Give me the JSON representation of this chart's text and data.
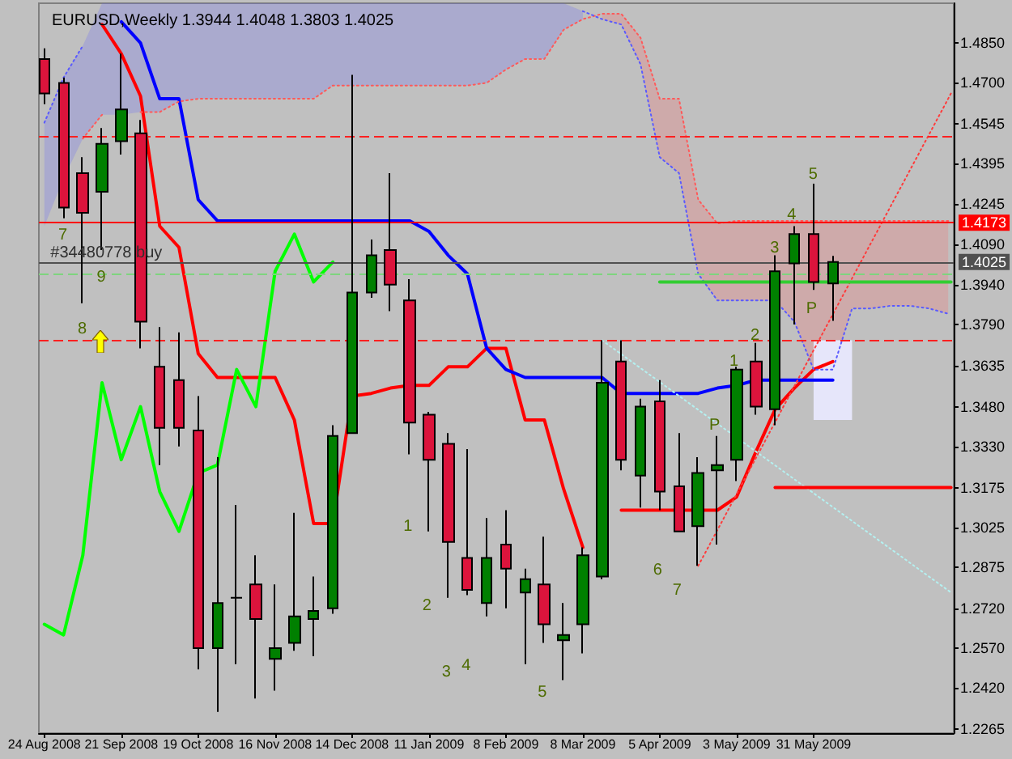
{
  "chart_data": {
    "type": "candlestick",
    "title": "EURUSD,Weekly 1.3944 1.4048 1.3803 1.4025",
    "x": [
      "2008-08-24",
      "2008-08-31",
      "2008-09-07",
      "2008-09-14",
      "2008-09-21",
      "2008-09-28",
      "2008-10-05",
      "2008-10-12",
      "2008-10-19",
      "2008-10-26",
      "2008-11-02",
      "2008-11-09",
      "2008-11-16",
      "2008-11-23",
      "2008-11-30",
      "2008-12-07",
      "2008-12-14",
      "2008-12-21",
      "2008-12-28",
      "2009-01-04",
      "2009-01-11",
      "2009-01-18",
      "2009-01-25",
      "2009-02-01",
      "2009-02-08",
      "2009-02-15",
      "2009-02-22",
      "2009-03-01",
      "2009-03-08",
      "2009-03-15",
      "2009-03-22",
      "2009-03-29",
      "2009-04-05",
      "2009-04-12",
      "2009-04-19",
      "2009-04-26",
      "2009-05-03",
      "2009-05-10",
      "2009-05-17",
      "2009-05-24",
      "2009-05-31",
      "2009-06-07"
    ],
    "ohlc": [
      [
        1.479,
        1.483,
        1.462,
        1.466
      ],
      [
        1.47,
        1.472,
        1.419,
        1.423
      ],
      [
        1.436,
        1.442,
        1.387,
        1.421
      ],
      [
        1.429,
        1.453,
        1.407,
        1.447
      ],
      [
        1.448,
        1.481,
        1.443,
        1.46
      ],
      [
        1.451,
        1.456,
        1.37,
        1.38
      ],
      [
        1.363,
        1.378,
        1.326,
        1.34
      ],
      [
        1.358,
        1.376,
        1.333,
        1.34
      ],
      [
        1.339,
        1.352,
        1.249,
        1.257
      ],
      [
        1.257,
        1.329,
        1.233,
        1.274
      ],
      [
        1.276,
        1.311,
        1.251,
        1.276
      ],
      [
        1.281,
        1.292,
        1.238,
        1.268
      ],
      [
        1.253,
        1.281,
        1.241,
        1.257
      ],
      [
        1.259,
        1.308,
        1.256,
        1.269
      ],
      [
        1.268,
        1.284,
        1.254,
        1.271
      ],
      [
        1.272,
        1.341,
        1.27,
        1.337
      ],
      [
        1.338,
        1.473,
        1.338,
        1.391
      ],
      [
        1.391,
        1.411,
        1.389,
        1.405
      ],
      [
        1.407,
        1.436,
        1.384,
        1.394
      ],
      [
        1.388,
        1.396,
        1.33,
        1.342
      ],
      [
        1.345,
        1.346,
        1.301,
        1.328
      ],
      [
        1.334,
        1.338,
        1.276,
        1.297
      ],
      [
        1.291,
        1.332,
        1.277,
        1.279
      ],
      [
        1.274,
        1.306,
        1.269,
        1.291
      ],
      [
        1.296,
        1.309,
        1.272,
        1.287
      ],
      [
        1.278,
        1.287,
        1.251,
        1.283
      ],
      [
        1.281,
        1.299,
        1.259,
        1.266
      ],
      [
        1.26,
        1.274,
        1.245,
        1.262
      ],
      [
        1.266,
        1.295,
        1.255,
        1.292
      ],
      [
        1.284,
        1.373,
        1.283,
        1.357
      ],
      [
        1.365,
        1.373,
        1.324,
        1.328
      ],
      [
        1.322,
        1.351,
        1.31,
        1.348
      ],
      [
        1.35,
        1.358,
        1.309,
        1.316
      ],
      [
        1.318,
        1.338,
        1.301,
        1.301
      ],
      [
        1.303,
        1.329,
        1.288,
        1.323
      ],
      [
        1.324,
        1.337,
        1.296,
        1.326
      ],
      [
        1.328,
        1.363,
        1.32,
        1.362
      ],
      [
        1.365,
        1.372,
        1.345,
        1.348
      ],
      [
        1.347,
        1.405,
        1.341,
        1.399
      ],
      [
        1.402,
        1.416,
        1.379,
        1.413
      ],
      [
        1.413,
        1.432,
        1.392,
        1.395
      ],
      [
        1.3944,
        1.4048,
        1.3803,
        1.4025
      ]
    ],
    "colors": [
      "#dc143c",
      "#dc143c",
      "#dc143c",
      "#008000",
      "#008000",
      "#dc143c",
      "#dc143c",
      "#dc143c",
      "#dc143c",
      "#008000",
      "#000000",
      "#dc143c",
      "#008000",
      "#008000",
      "#008000",
      "#008000",
      "#008000",
      "#008000",
      "#dc143c",
      "#dc143c",
      "#dc143c",
      "#dc143c",
      "#dc143c",
      "#008000",
      "#dc143c",
      "#008000",
      "#dc143c",
      "#008000",
      "#008000",
      "#008000",
      "#dc143c",
      "#008000",
      "#dc143c",
      "#dc143c",
      "#008000",
      "#008000",
      "#008000",
      "#dc143c",
      "#008000",
      "#008000",
      "#dc143c",
      "#008000"
    ],
    "series": [
      {
        "type": "line",
        "color": "#ff0000",
        "line_style": "solid",
        "values": [
          null,
          null,
          null,
          1.492,
          1.481,
          1.465,
          1.416,
          1.408,
          1.368,
          1.359,
          1.359,
          1.359,
          1.359,
          1.343,
          1.304,
          1.304,
          1.352,
          1.353,
          1.355,
          1.356,
          1.356,
          1.363,
          1.363,
          1.37,
          1.37,
          1.343,
          1.343,
          1.317,
          1.295,
          null,
          1.309,
          1.309,
          1.309,
          1.309,
          1.309,
          1.309,
          1.314,
          1.331,
          1.347,
          1.355,
          1.362,
          1.365
        ]
      },
      {
        "type": "line",
        "color": "#0000ff",
        "line_style": "solid",
        "values": [
          null,
          null,
          null,
          null,
          1.493,
          1.485,
          1.464,
          1.464,
          1.426,
          1.418,
          1.418,
          1.418,
          1.418,
          1.418,
          1.418,
          1.418,
          1.418,
          1.418,
          1.418,
          1.418,
          1.414,
          1.405,
          1.398,
          1.37,
          1.362,
          1.359,
          1.359,
          1.359,
          1.359,
          1.359,
          1.353,
          1.353,
          1.353,
          1.353,
          1.353,
          1.355,
          1.356,
          1.358,
          1.358,
          1.358,
          1.358,
          1.358
        ]
      },
      {
        "type": "line",
        "color": "#00ff00",
        "line_style": "solid",
        "x": [
          "2008-08-24",
          "2008-08-31",
          "2008-09-07",
          "2008-09-14",
          "2008-09-21",
          "2008-09-28",
          "2008-10-05",
          "2008-10-12",
          "2008-10-19",
          "2008-10-26",
          "2008-11-02",
          "2008-11-09",
          "2008-11-16",
          "2008-11-23",
          "2008-11-30",
          "2008-12-07"
        ],
        "values": [
          1.266,
          1.262,
          1.292,
          1.357,
          1.328,
          1.348,
          1.316,
          1.301,
          1.323,
          1.326,
          1.362,
          1.348,
          1.399,
          1.413,
          1.395,
          1.4025
        ]
      },
      {
        "type": "line",
        "color": "#ff5a5a",
        "line_style": "dotted",
        "x": [
          "2008-09-07",
          "2008-09-14",
          "2008-09-21",
          "2008-09-28",
          "2008-10-05",
          "2008-10-12",
          "2008-10-19",
          "2008-10-26",
          "2008-11-02",
          "2008-11-09",
          "2008-11-16",
          "2008-11-23",
          "2008-11-30",
          "2008-12-07",
          "2008-12-14",
          "2008-12-21",
          "2008-12-28",
          "2009-01-04",
          "2009-01-11",
          "2009-01-18",
          "2009-01-25",
          "2009-02-01",
          "2009-02-08",
          "2009-02-15",
          "2009-02-22",
          "2009-03-01",
          "2009-03-08",
          "2009-03-15",
          "2009-03-22",
          "2009-03-29",
          "2009-04-05",
          "2009-04-12",
          "2009-04-19",
          "2009-04-26",
          "2009-05-03",
          "2009-05-10",
          "2009-05-17",
          "2009-05-24",
          "2009-05-31",
          "2009-06-07",
          "2009-06-14",
          "2009-06-21",
          "2009-06-28",
          "2009-07-05",
          "2009-07-12",
          "2009-07-19"
        ],
        "values": [
          1.449,
          1.458,
          null,
          1.459,
          1.459,
          1.463,
          1.464,
          1.464,
          1.464,
          1.464,
          1.464,
          1.464,
          1.464,
          1.469,
          1.469,
          1.469,
          1.469,
          1.469,
          1.469,
          1.469,
          1.469,
          1.47,
          1.475,
          1.479,
          1.479,
          1.49,
          1.494,
          1.496,
          1.496,
          1.487,
          1.464,
          1.464,
          1.426,
          1.417,
          1.418,
          1.418,
          1.418,
          1.418,
          1.418,
          1.418,
          1.418,
          1.418,
          1.418,
          1.418,
          1.418,
          1.418
        ],
        "lower": [
          null,
          null,
          null,
          null,
          null,
          null,
          null,
          null,
          null,
          null,
          null,
          null,
          null,
          null,
          null,
          null,
          null,
          null,
          null,
          null,
          null,
          null,
          null,
          null,
          null,
          null,
          null,
          1.494,
          1.492,
          1.477,
          1.442,
          1.436,
          1.398,
          1.388,
          1.388,
          1.388,
          1.388,
          1.38,
          1.362,
          1.362,
          1.385,
          1.385,
          1.386,
          1.386,
          1.385,
          1.383
        ],
        "upper": [
          null,
          null,
          null,
          null,
          null,
          null,
          null,
          null,
          null,
          null,
          null,
          null,
          null,
          null,
          null,
          null,
          null,
          null,
          null,
          null,
          null,
          null,
          null,
          null,
          null,
          null,
          null,
          1.496,
          1.496,
          1.487,
          1.464,
          1.464,
          1.426,
          1.417,
          1.418,
          1.418,
          1.418,
          1.418,
          1.418,
          1.418,
          1.418,
          1.418,
          1.418,
          1.418,
          1.418,
          1.418
        ]
      },
      {
        "type": "line",
        "color": "#5a5aff",
        "line_style": "dotted",
        "x": [
          "2008-08-24",
          "2008-08-31",
          "2008-09-07",
          "2008-09-14",
          "2008-09-21",
          "2008-09-28",
          "2008-10-05",
          "2008-10-12",
          "2008-10-19",
          "2008-10-26",
          "2008-11-02",
          "2008-11-09",
          "2008-11-16",
          "2008-11-23",
          "2008-11-30",
          "2008-12-07",
          "2008-12-14",
          "2008-12-21",
          "2008-12-28",
          "2009-01-04",
          "2009-01-11",
          "2009-01-18",
          "2009-01-25",
          "2009-02-01",
          "2009-02-08",
          "2009-02-15",
          "2009-02-22",
          "2009-03-01",
          "2009-03-08",
          "2009-03-15",
          "2009-03-22",
          "2009-03-29",
          "2009-04-05",
          "2009-04-12",
          "2009-04-19",
          "2009-04-26",
          "2009-05-03",
          "2009-05-10",
          "2009-05-17",
          "2009-05-24",
          "2009-05-31",
          "2009-06-07",
          "2009-06-14",
          "2009-06-21",
          "2009-06-28",
          "2009-07-05",
          "2009-07-12",
          "2009-07-19"
        ],
        "values": [
          1.455,
          1.472,
          1.484,
          null,
          null,
          null,
          null,
          null,
          null,
          null,
          null,
          null,
          null,
          null,
          null,
          null,
          null,
          null,
          null,
          null,
          null,
          null,
          null,
          null,
          null,
          null,
          null,
          null,
          1.497,
          1.494,
          1.492,
          1.477,
          1.442,
          1.436,
          1.398,
          1.388,
          1.388,
          1.388,
          1.388,
          1.38,
          1.362,
          1.362,
          1.385,
          1.385,
          1.386,
          1.386,
          1.385,
          1.383
        ],
        "lower": [
          1.416,
          1.434,
          1.449,
          1.458,
          1.458,
          1.459,
          1.459,
          1.463,
          1.464,
          1.464,
          1.464,
          1.464,
          1.464,
          1.464,
          1.464,
          1.469,
          1.469,
          1.469,
          1.469,
          1.469,
          1.469,
          1.469,
          1.469,
          1.47,
          1.475,
          1.479,
          1.479,
          1.49,
          1.494,
          null,
          null,
          null,
          null,
          null,
          null,
          null,
          null,
          null,
          null,
          null,
          null,
          null,
          null,
          null,
          null,
          null,
          null,
          null
        ],
        "upper": [
          1.455,
          1.472,
          1.484,
          1.5,
          1.5,
          1.5,
          1.5,
          1.5,
          1.5,
          1.5,
          1.5,
          1.5,
          1.5,
          1.5,
          1.5,
          1.5,
          1.5,
          1.5,
          1.5,
          1.5,
          1.5,
          1.5,
          1.5,
          1.5,
          1.5,
          1.5,
          1.5,
          1.5,
          1.497,
          null,
          null,
          null,
          null,
          null,
          null,
          null,
          null,
          null,
          null,
          null,
          null,
          null,
          null,
          null,
          null,
          null,
          null,
          null
        ]
      },
      {
        "type": "line",
        "color": "#ff3c3c",
        "line_style": "dotted",
        "x": [
          "2009-04-19",
          "2009-07-20"
        ],
        "values": [
          1.288,
          1.466
        ]
      },
      {
        "type": "line",
        "color": "#b4f0f0",
        "line_style": "dotted",
        "x": [
          "2009-03-15",
          "2009-07-20"
        ],
        "values": [
          1.373,
          1.278
        ]
      },
      {
        "type": "line",
        "color": "#32cd32",
        "line_style": "solid",
        "x": [
          "2009-04-05",
          "2009-07-20"
        ],
        "values": [
          1.395,
          1.395
        ]
      },
      {
        "type": "line",
        "color": "#ff0000",
        "line_style": "solid",
        "x": [
          "2009-05-17",
          "2009-07-20"
        ],
        "values": [
          1.3175,
          1.3175
        ]
      },
      {
        "type": "bar",
        "color": "#e6e6fa",
        "x": [
          "2009-06-07"
        ],
        "base": [
          1.343
        ],
        "values": [
          0.03
        ]
      }
    ],
    "xlim": [
      "2008-08-22",
      "2009-07-21"
    ],
    "xticks": [
      {
        "value": "2008-08-24",
        "label": "24 Aug 2008"
      },
      {
        "value": "2008-09-21",
        "label": "21 Sep 2008"
      },
      {
        "value": "2008-10-19",
        "label": "19 Oct 2008"
      },
      {
        "value": "2008-11-16",
        "label": "16 Nov 2008"
      },
      {
        "value": "2008-12-14",
        "label": "14 Dec 2008"
      },
      {
        "value": "2009-01-11",
        "label": "11 Jan 2009"
      },
      {
        "value": "2009-02-08",
        "label": "8 Feb 2009"
      },
      {
        "value": "2009-03-08",
        "label": "8 Mar 2009"
      },
      {
        "value": "2009-04-05",
        "label": "5 Apr 2009"
      },
      {
        "value": "2009-05-03",
        "label": "3 May 2009"
      },
      {
        "value": "2009-05-31",
        "label": "31 May 2009"
      }
    ],
    "ylim": [
      1.225,
      1.5
    ],
    "yticks": [
      {
        "value": 1.485,
        "label": "1.4850"
      },
      {
        "value": 1.47,
        "label": "1.4700"
      },
      1.4545,
      1.4395,
      1.4245,
      {
        "value": 1.409,
        "label": "1.4090"
      },
      {
        "value": 1.394,
        "label": "1.3940"
      },
      {
        "value": 1.379,
        "label": "1.3790"
      },
      1.3635,
      {
        "value": 1.348,
        "label": "1.3480"
      },
      {
        "value": 1.333,
        "label": "1.3330"
      },
      1.3175,
      1.3025,
      1.2875,
      {
        "value": 1.272,
        "label": "1.2720"
      },
      {
        "value": 1.257,
        "label": "1.2570"
      },
      {
        "value": 1.242,
        "label": "1.2420"
      },
      1.2265
    ],
    "grid": false,
    "ref_lines": [
      {
        "axis": "y",
        "value": 1.4173,
        "label": "1.4173",
        "color": "#ff0000",
        "line_style": "solid"
      },
      {
        "axis": "y",
        "value": 1.4025,
        "label": "1.4025",
        "color": "#505050",
        "line_style": "solid"
      },
      {
        "axis": "y",
        "value": 1.45,
        "color": "#ff2020",
        "line_style": "dashed"
      },
      {
        "axis": "y",
        "value": 1.373,
        "color": "#ff2020",
        "line_style": "dashed"
      },
      {
        "axis": "y",
        "value": 1.398,
        "color": "#7ed47e",
        "line_style": "dashed"
      }
    ],
    "annotations": [
      "7",
      "9",
      "8",
      "#34480778 buy",
      "1",
      "2",
      "3",
      "4",
      "5",
      "6",
      "7",
      {
        "text": "1",
        "x": "2009-05-02",
        "y": 1.365
      },
      "2",
      "3",
      {
        "text": "4",
        "x": "2009-05-23",
        "y": 1.42
      },
      "5",
      "P",
      {
        "text": "P",
        "x": "2009-04-25",
        "y": 1.341
      }
    ]
  }
}
